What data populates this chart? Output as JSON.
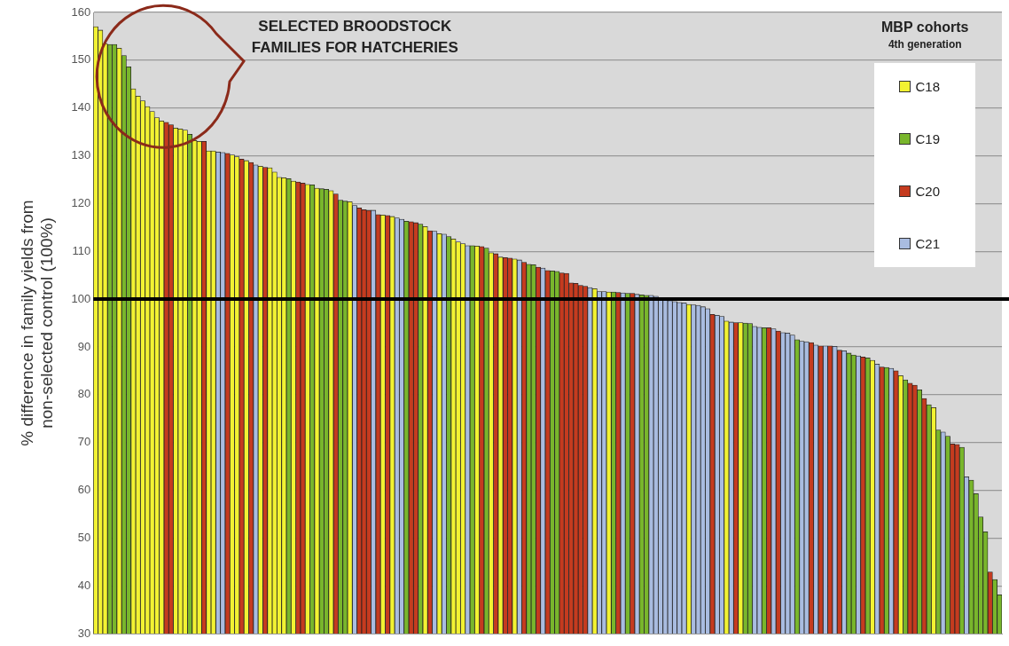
{
  "chart_data": {
    "type": "bar",
    "ylabel": "% difference in family yields from non-selected control (100%)",
    "legend_title": "MBP cohorts",
    "annotations": [
      "SELECTED BROODSTOCK FAMILIES FOR HATCHERIES",
      "4th generation"
    ],
    "categories": [
      null,
      null,
      null,
      null,
      null,
      null,
      null,
      null,
      null,
      null,
      null,
      null,
      null,
      null,
      null,
      null,
      null,
      null,
      null,
      null,
      null,
      null,
      null,
      null,
      null,
      null,
      null,
      null,
      null,
      null,
      null,
      null,
      null,
      null,
      null,
      null,
      null,
      null,
      null,
      null,
      null,
      null,
      null,
      null,
      null,
      null,
      null,
      null,
      null,
      null,
      null,
      null,
      null,
      null,
      null,
      null,
      null,
      null,
      null,
      null,
      null,
      null,
      null,
      null,
      null,
      null,
      null,
      null,
      null,
      null,
      null,
      null,
      null,
      null,
      null,
      null,
      null,
      null,
      null,
      null,
      null,
      null,
      null,
      null,
      null,
      null,
      null,
      null,
      null,
      null,
      null,
      null,
      null,
      null,
      null,
      null,
      null,
      null,
      null,
      null,
      null,
      null,
      null,
      null,
      null,
      null,
      null,
      null,
      null,
      null,
      null,
      null,
      null,
      null,
      null,
      null,
      null,
      null,
      null,
      null,
      null,
      null,
      null,
      null,
      null,
      null,
      null,
      null,
      null,
      null,
      null,
      null,
      null,
      null,
      null,
      null,
      null,
      null,
      null,
      null,
      null,
      null,
      null,
      null,
      null,
      null,
      null,
      null,
      null,
      null,
      null,
      null,
      null,
      null,
      null,
      null,
      null,
      null,
      null,
      null,
      null,
      null,
      null,
      null,
      null,
      null,
      null,
      null,
      null,
      null,
      null,
      null,
      null,
      null,
      null,
      null,
      null,
      null,
      null,
      null,
      null,
      null,
      null,
      null,
      null,
      null,
      null,
      null,
      null,
      null,
      null,
      null,
      null
    ],
    "series": [
      {
        "name": "C18",
        "color": "#f2f232",
        "values": [
          157,
          156.3,
          153.5,
          null,
          null,
          152.5,
          null,
          null,
          144,
          142.5,
          141.5,
          140.3,
          139.3,
          138,
          137.3,
          null,
          null,
          135.8,
          135.6,
          135.4,
          null,
          133.2,
          133,
          null,
          131,
          131,
          null,
          null,
          null,
          130.2,
          129.8,
          null,
          129,
          null,
          null,
          127.8,
          null,
          127.5,
          126.6,
          125.5,
          125.4,
          null,
          124.7,
          null,
          null,
          124,
          null,
          123.2,
          null,
          null,
          122.7,
          null,
          null,
          null,
          120.4,
          null,
          null,
          null,
          null,
          null,
          null,
          117.6,
          null,
          117.3,
          null,
          null,
          null,
          null,
          null,
          null,
          115.2,
          null,
          null,
          113.7,
          null,
          null,
          112.6,
          112,
          111.6,
          null,
          null,
          111.1,
          null,
          null,
          109.7,
          null,
          108.8,
          null,
          null,
          108.4,
          null,
          null,
          null,
          null,
          null,
          null,
          null,
          null,
          null,
          null,
          null,
          null,
          null,
          null,
          null,
          null,
          102.2,
          null,
          null,
          101.5,
          null,
          null,
          null,
          null,
          null,
          null,
          null,
          null,
          null,
          null,
          null,
          null,
          null,
          null,
          null,
          null,
          98.9,
          null,
          null,
          null,
          null,
          null,
          null,
          null,
          95.4,
          null,
          null,
          95.1,
          null,
          null,
          null,
          null,
          null,
          null,
          null,
          null,
          null,
          null,
          null,
          null,
          null,
          null,
          null,
          null,
          null,
          null,
          null,
          null,
          null,
          null,
          null,
          null,
          null,
          null,
          null,
          87.2,
          null,
          null,
          null,
          null,
          null,
          84,
          null,
          null,
          null,
          null,
          null,
          null,
          77.3,
          null,
          null,
          null,
          null,
          null,
          null,
          null,
          null,
          null,
          null,
          null,
          null,
          null,
          null
        ]
      },
      {
        "name": "C19",
        "color": "#79b62c",
        "values": [
          null,
          null,
          null,
          153.3,
          153.3,
          null,
          151,
          148.6,
          null,
          null,
          null,
          null,
          null,
          null,
          null,
          null,
          null,
          null,
          null,
          null,
          134.5,
          null,
          null,
          null,
          null,
          null,
          null,
          null,
          null,
          null,
          null,
          null,
          null,
          null,
          null,
          null,
          null,
          null,
          null,
          null,
          null,
          125.2,
          null,
          null,
          null,
          null,
          123.9,
          null,
          123.1,
          123,
          null,
          null,
          120.7,
          120.5,
          null,
          null,
          null,
          null,
          null,
          null,
          null,
          null,
          null,
          null,
          null,
          null,
          116.3,
          null,
          null,
          115.7,
          null,
          null,
          null,
          null,
          null,
          113.1,
          null,
          null,
          null,
          null,
          111.2,
          null,
          null,
          110.7,
          null,
          null,
          null,
          null,
          null,
          null,
          null,
          null,
          107.3,
          107.2,
          null,
          null,
          null,
          105.9,
          105.8,
          null,
          null,
          null,
          null,
          null,
          null,
          null,
          null,
          null,
          null,
          null,
          101.5,
          null,
          null,
          101.2,
          null,
          null,
          100.9,
          100.8,
          null,
          null,
          null,
          null,
          null,
          null,
          null,
          null,
          null,
          null,
          null,
          null,
          null,
          null,
          null,
          null,
          null,
          null,
          null,
          null,
          95,
          94.9,
          null,
          null,
          94,
          null,
          null,
          null,
          null,
          null,
          null,
          91.5,
          null,
          null,
          null,
          null,
          null,
          null,
          null,
          null,
          null,
          null,
          88.7,
          88.3,
          null,
          null,
          87.7,
          null,
          null,
          null,
          85.7,
          null,
          null,
          null,
          83.1,
          null,
          null,
          81,
          null,
          77.9,
          null,
          72.6,
          null,
          71.3,
          null,
          null,
          69,
          null,
          62.1,
          59.3,
          54.4,
          51.3,
          null,
          41.3,
          38.1
        ]
      },
      {
        "name": "C20",
        "color": "#c53b1f",
        "values": [
          null,
          null,
          null,
          null,
          null,
          null,
          null,
          null,
          null,
          null,
          null,
          null,
          null,
          null,
          null,
          137,
          136.5,
          null,
          null,
          null,
          null,
          null,
          null,
          133,
          null,
          null,
          null,
          null,
          130.5,
          null,
          null,
          129.3,
          null,
          128.6,
          null,
          null,
          127.6,
          null,
          null,
          null,
          null,
          null,
          null,
          124.5,
          124.3,
          null,
          null,
          null,
          null,
          null,
          null,
          122,
          null,
          null,
          null,
          null,
          119.1,
          118.7,
          118.6,
          null,
          117.7,
          null,
          117.5,
          null,
          null,
          null,
          null,
          116.2,
          116,
          null,
          null,
          114.3,
          null,
          null,
          null,
          null,
          null,
          null,
          null,
          null,
          null,
          null,
          111,
          null,
          null,
          109.5,
          null,
          108.7,
          108.6,
          null,
          null,
          107.7,
          null,
          null,
          106.7,
          null,
          106,
          null,
          null,
          105.5,
          105.4,
          103.4,
          103.3,
          102.9,
          102.7,
          null,
          null,
          null,
          null,
          null,
          null,
          101.4,
          null,
          null,
          101.2,
          null,
          null,
          null,
          null,
          null,
          null,
          null,
          null,
          null,
          null,
          null,
          null,
          null,
          null,
          null,
          null,
          96.8,
          null,
          null,
          null,
          null,
          95.1,
          null,
          null,
          null,
          null,
          null,
          null,
          94,
          null,
          93.3,
          null,
          null,
          null,
          null,
          null,
          null,
          90.9,
          null,
          90.2,
          null,
          90.2,
          null,
          89.3,
          null,
          null,
          null,
          null,
          87.9,
          null,
          null,
          null,
          85.8,
          null,
          null,
          85,
          null,
          null,
          82.4,
          82,
          null,
          79.2,
          null,
          null,
          null,
          null,
          null,
          69.7,
          69.6,
          null,
          null,
          null,
          null,
          null,
          null,
          42.9,
          null,
          null
        ]
      },
      {
        "name": "C21",
        "color": "#a9bce0",
        "values": [
          null,
          null,
          null,
          null,
          null,
          null,
          null,
          null,
          null,
          null,
          null,
          null,
          null,
          null,
          null,
          null,
          null,
          null,
          null,
          null,
          null,
          null,
          null,
          null,
          null,
          null,
          130.8,
          130.7,
          null,
          null,
          null,
          null,
          null,
          null,
          128.1,
          null,
          null,
          null,
          null,
          null,
          null,
          null,
          null,
          null,
          null,
          null,
          null,
          null,
          null,
          null,
          null,
          null,
          null,
          null,
          null,
          119.6,
          null,
          null,
          null,
          118.6,
          null,
          null,
          null,
          null,
          117,
          116.7,
          null,
          null,
          null,
          null,
          null,
          null,
          114.2,
          null,
          113.6,
          null,
          null,
          null,
          null,
          111.2,
          null,
          null,
          null,
          null,
          null,
          null,
          null,
          null,
          null,
          null,
          108.2,
          null,
          null,
          null,
          null,
          106.5,
          null,
          null,
          null,
          null,
          null,
          null,
          null,
          null,
          null,
          102.4,
          null,
          101.6,
          101.6,
          null,
          null,
          null,
          101.3,
          null,
          null,
          101,
          null,
          null,
          100.8,
          100.6,
          100.3,
          100.1,
          99.7,
          99.5,
          99.3,
          99.2,
          null,
          98.8,
          98.7,
          98.4,
          98,
          null,
          96.6,
          96.4,
          null,
          95.2,
          null,
          null,
          null,
          null,
          94.3,
          94.1,
          null,
          null,
          93.8,
          null,
          93,
          92.9,
          92.5,
          null,
          91.2,
          91.1,
          null,
          90.4,
          null,
          90.2,
          null,
          90.1,
          null,
          89.2,
          null,
          null,
          88.1,
          null,
          null,
          null,
          86.4,
          null,
          null,
          85.5,
          null,
          null,
          null,
          null,
          null,
          null,
          null,
          null,
          null,
          null,
          72.2,
          null,
          null,
          null,
          null,
          62.8,
          null,
          null,
          null,
          null,
          null,
          null,
          null
        ]
      }
    ],
    "ylim": [
      30,
      160
    ],
    "yticks": [
      30,
      40,
      50,
      60,
      70,
      80,
      90,
      100,
      110,
      120,
      130,
      140,
      150,
      160
    ],
    "grid": "y",
    "legend": "top right",
    "ref_lines": [
      {
        "axis": "y",
        "value": 100,
        "color": "#000000"
      }
    ]
  }
}
